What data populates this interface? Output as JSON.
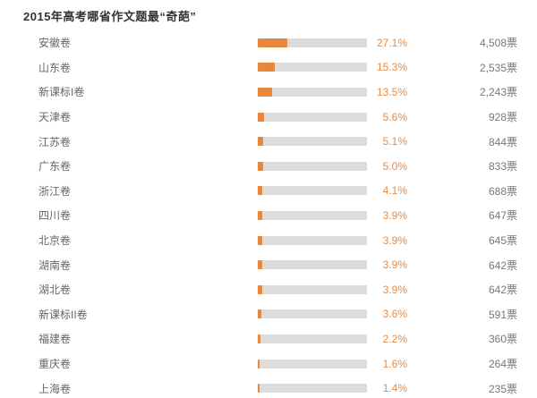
{
  "header": {
    "title": "2015年高考哪省作文题最“奇葩”"
  },
  "colors": {
    "bar_fill": "#e8873b",
    "bar_track": "#dcdcdc",
    "percent_text": "#e78b43",
    "title_text": "#333333",
    "label_text": "#666666",
    "votes_text": "#777777",
    "background": "#ffffff"
  },
  "chart_data": {
    "type": "bar",
    "orientation": "horizontal",
    "title": "2015年高考哪省作文题最“奇葩”",
    "categories": [
      "安徽卷",
      "山东卷",
      "新课标I卷",
      "天津卷",
      "江苏卷",
      "广东卷",
      "浙江卷",
      "四川卷",
      "北京卷",
      "湖南卷",
      "湖北卷",
      "新课标II卷",
      "福建卷",
      "重庆卷",
      "上海卷"
    ],
    "values_percent": [
      27.1,
      15.3,
      13.5,
      5.6,
      5.1,
      5.0,
      4.1,
      3.9,
      3.9,
      3.9,
      3.9,
      3.6,
      2.2,
      1.6,
      1.4
    ],
    "percent_labels": [
      "27.1%",
      "15.3%",
      "13.5%",
      "5.6%",
      "5.1%",
      "5.0%",
      "4.1%",
      "3.9%",
      "3.9%",
      "3.9%",
      "3.9%",
      "3.6%",
      "2.2%",
      "1.6%",
      "1.4%"
    ],
    "votes": [
      4508,
      2535,
      2243,
      928,
      844,
      833,
      688,
      647,
      645,
      642,
      642,
      591,
      360,
      264,
      235
    ],
    "vote_labels": [
      "4,508票",
      "2,535票",
      "2,243票",
      "928票",
      "844票",
      "833票",
      "688票",
      "647票",
      "645票",
      "642票",
      "642票",
      "591票",
      "360票",
      "264票",
      "235票"
    ],
    "xlim": [
      0,
      100
    ],
    "grid": false,
    "legend": false,
    "unit_suffix": "票"
  }
}
